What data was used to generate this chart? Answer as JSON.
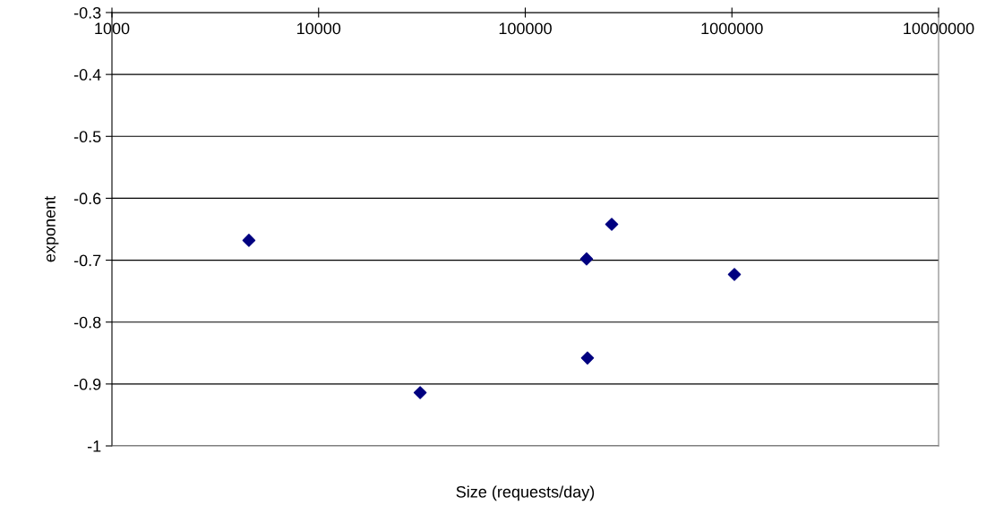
{
  "chart_data": {
    "type": "scatter",
    "xlabel": "Size (requests/day)",
    "ylabel": "exponent",
    "x": [
      4600,
      31000,
      198000,
      200000,
      262000,
      1028000
    ],
    "series": [
      {
        "color": "#000080",
        "values": [
          -0.668,
          -0.914,
          -0.698,
          -0.858,
          -0.642,
          -0.723
        ]
      }
    ],
    "log": "x",
    "xlim": [
      1000,
      10000000
    ],
    "xticks": [
      1000,
      10000,
      100000,
      1000000,
      10000000
    ],
    "ylim": [
      -1,
      -0.3
    ],
    "yticks": [
      -1,
      -0.9,
      -0.8,
      -0.7,
      -0.6,
      -0.5,
      -0.4,
      -0.3
    ],
    "grid": "y",
    "marker": "diamond",
    "legend": false
  }
}
